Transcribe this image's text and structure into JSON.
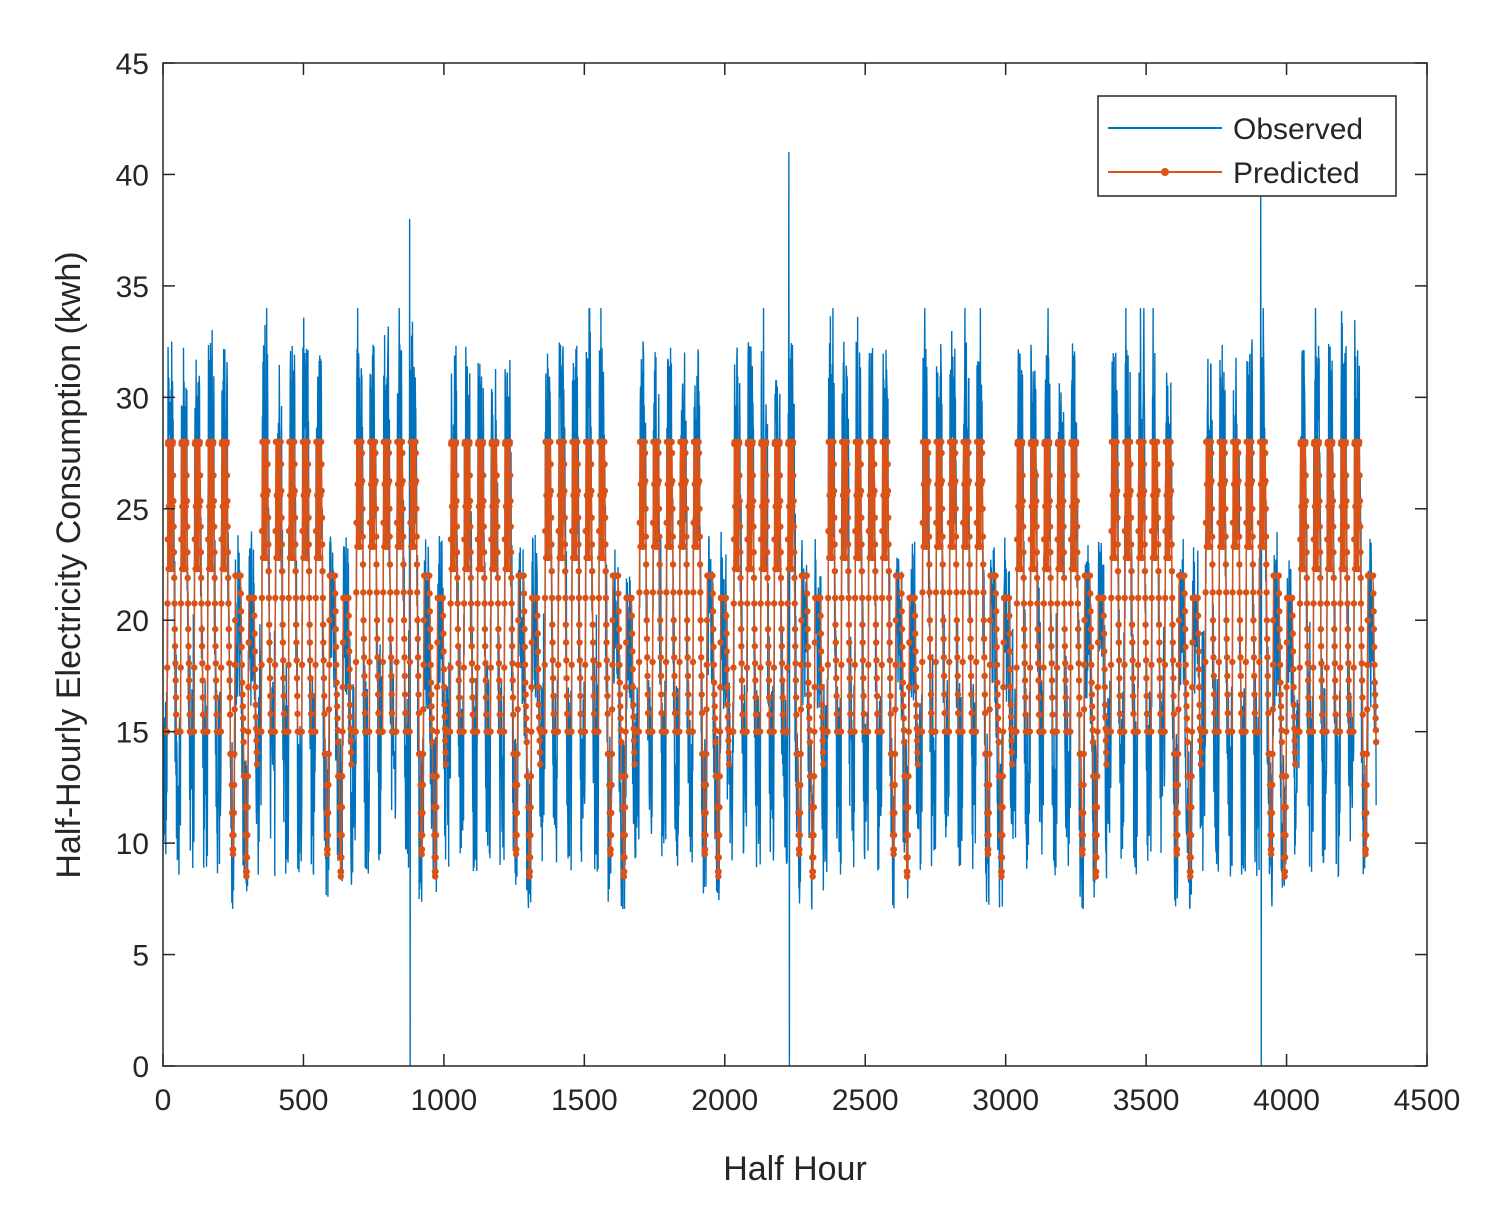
{
  "chart_data": {
    "type": "line",
    "title": "",
    "xlabel": "Half Hour",
    "ylabel": "Half-Hourly Electricity Consumption (kwh)",
    "xlim": [
      0,
      4500
    ],
    "ylim": [
      0,
      45
    ],
    "x_ticks": [
      0,
      500,
      1000,
      1500,
      2000,
      2500,
      3000,
      3500,
      4000,
      4500
    ],
    "y_ticks": [
      0,
      5,
      10,
      15,
      20,
      25,
      30,
      35,
      40,
      45
    ],
    "x_tick_labels": [
      "0",
      "500",
      "1000",
      "1500",
      "2000",
      "2500",
      "3000",
      "3500",
      "4000",
      "4500"
    ],
    "y_tick_labels": [
      "0",
      "5",
      "10",
      "15",
      "20",
      "25",
      "30",
      "35",
      "40",
      "45"
    ],
    "grid": false,
    "legend_position": "top-right",
    "series_generation": {
      "n_points": 4320,
      "day_length": 48,
      "week_length": 336,
      "spikes_high": [
        {
          "x": 878,
          "y": 38
        },
        {
          "x": 2228,
          "y": 41
        },
        {
          "x": 3908,
          "y": 39
        }
      ],
      "spikes_zero": [
        {
          "x": 880,
          "y": 0
        },
        {
          "x": 2230,
          "y": 0
        },
        {
          "x": 3910,
          "y": 0
        }
      ]
    },
    "series": [
      {
        "name": "Observed",
        "color": "#0072BD",
        "style": "line",
        "summary": {
          "min": 0,
          "max": 41,
          "weekday_day_range": [
            26,
            31
          ],
          "night_range": [
            9,
            15
          ]
        }
      },
      {
        "name": "Predicted",
        "color": "#D95319",
        "style": "line-marker",
        "summary": {
          "min": 8.5,
          "max": 28,
          "weekday_day_range": [
            26,
            28
          ],
          "night_range": [
            14.5,
            16
          ]
        }
      }
    ]
  }
}
